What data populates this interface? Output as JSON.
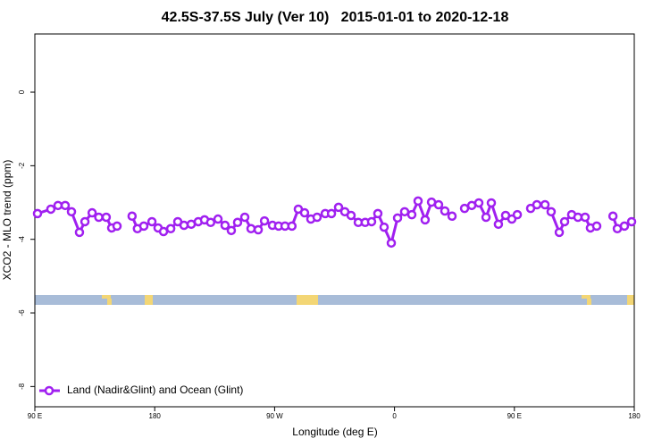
{
  "chart_data": {
    "type": "line",
    "title": "42.5S-37.5S July (Ver 10)   2015-01-01 to 2020-12-18",
    "xlabel": "Longitude (deg E)",
    "ylabel": "XCO2 - MLO trend (ppm)",
    "xlim": [
      90,
      540
    ],
    "ylim": [
      -8.55,
      1.58
    ],
    "xticks": [
      {
        "value": 90,
        "label": "90 E"
      },
      180,
      {
        "value": 270,
        "label": "90 W"
      },
      {
        "value": 360,
        "label": "0"
      },
      {
        "value": 450,
        "label": "90 E"
      },
      {
        "value": 540,
        "label": "180"
      }
    ],
    "yticks": [
      0,
      -2,
      -4,
      -6,
      -8
    ],
    "legend": "bottom-left",
    "x": [
      92,
      102,
      107.4,
      112.8,
      117.5,
      123.5,
      127.6,
      133,
      138,
      143.6,
      147.7,
      151.7,
      157.4,
      163,
      167,
      171.8,
      177.9,
      182.5,
      186.6,
      192,
      197.3,
      202,
      207.4,
      212.7,
      217.4,
      222,
      227.5,
      232.8,
      237.5,
      242.2,
      247.6,
      252.3,
      257.7,
      262.4,
      268.4,
      273,
      277.8,
      283,
      287.8,
      292.5,
      297.2,
      301.9,
      308,
      312.7,
      318,
      322.7,
      327.4,
      332.8,
      338,
      342.8,
      347.5,
      352.2,
      357.6,
      362.3,
      367.6,
      373,
      377.7,
      383,
      387.8,
      393.1,
      397.8,
      403.2,
      407.9,
      412.6,
      418,
      423.3,
      428.7,
      432.7,
      438,
      443.4,
      448.1,
      452.2,
      457.2,
      462.2,
      466.9,
      473,
      477.6,
      483.7,
      487.7,
      493,
      497.7,
      503.1,
      507.1,
      511.8,
      517.9,
      524,
      527.3,
      532.6,
      538
    ],
    "series": [
      {
        "name": "Land (Nadir&Glint) and Ocean (Glint)",
        "color": "#a020f0",
        "values": [
          -3.3,
          -3.18,
          -3.08,
          -3.08,
          -3.25,
          -3.81,
          -3.52,
          -3.28,
          -3.4,
          -3.4,
          -3.69,
          -3.64,
          null,
          -3.37,
          -3.71,
          -3.64,
          -3.52,
          -3.69,
          -3.79,
          -3.71,
          -3.52,
          -3.62,
          -3.59,
          -3.52,
          -3.47,
          -3.54,
          -3.45,
          -3.62,
          -3.76,
          -3.54,
          -3.4,
          -3.71,
          -3.74,
          -3.5,
          -3.62,
          -3.64,
          -3.64,
          -3.64,
          -3.18,
          -3.28,
          -3.45,
          -3.4,
          -3.3,
          -3.3,
          -3.13,
          -3.25,
          -3.35,
          -3.54,
          -3.54,
          -3.52,
          -3.3,
          -3.67,
          -4.1,
          -3.42,
          -3.25,
          -3.33,
          -2.96,
          -3.47,
          -2.99,
          -3.06,
          -3.23,
          -3.37,
          null,
          -3.16,
          -3.08,
          -3.01,
          -3.4,
          -3.01,
          -3.59,
          -3.35,
          -3.45,
          -3.33,
          null,
          -3.16,
          -3.06,
          -3.06,
          -3.25,
          -3.81,
          -3.52,
          -3.33,
          -3.4,
          -3.4,
          -3.69,
          -3.64,
          null,
          -3.37,
          -3.71,
          -3.64,
          -3.52
        ]
      }
    ]
  }
}
